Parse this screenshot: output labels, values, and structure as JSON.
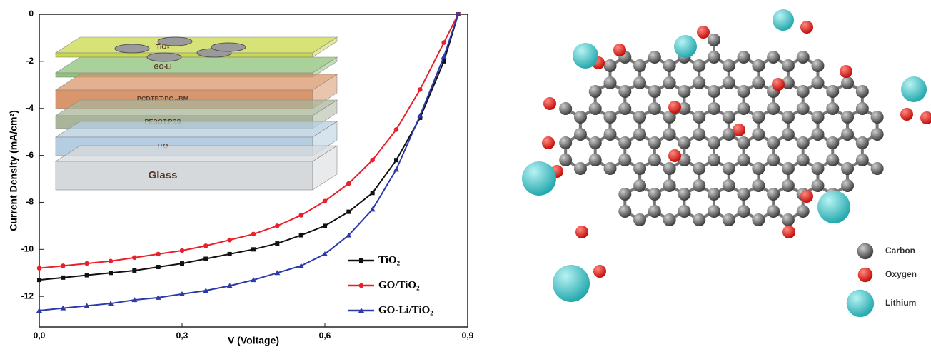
{
  "chart_data": {
    "type": "line",
    "xlabel": "V (Voltage)",
    "ylabel": "Current Density (mA/cm²)",
    "x": [
      0,
      0.05,
      0.1,
      0.15,
      0.2,
      0.25,
      0.3,
      0.35,
      0.4,
      0.45,
      0.5,
      0.55,
      0.6,
      0.65,
      0.7,
      0.75,
      0.8,
      0.85,
      0.88
    ],
    "series": [
      {
        "name": "TiO₂",
        "color": "#111111",
        "marker": "square",
        "values": [
          -11.3,
          -11.2,
          -11.1,
          -11.0,
          -10.9,
          -10.75,
          -10.6,
          -10.4,
          -10.2,
          -10.0,
          -9.75,
          -9.4,
          -9.0,
          -8.4,
          -7.6,
          -6.2,
          -4.4,
          -2.0,
          0
        ]
      },
      {
        "name": "GO/TiO₂",
        "color": "#e8202a",
        "marker": "circle",
        "values": [
          -10.8,
          -10.7,
          -10.6,
          -10.5,
          -10.35,
          -10.2,
          -10.05,
          -9.85,
          -9.6,
          -9.35,
          -9.0,
          -8.55,
          -7.95,
          -7.2,
          -6.2,
          -4.9,
          -3.2,
          -1.2,
          0
        ]
      },
      {
        "name": "GO-Li/TiO₂",
        "color": "#2b3aa8",
        "marker": "triangle",
        "values": [
          -12.6,
          -12.5,
          -12.4,
          -12.3,
          -12.15,
          -12.05,
          -11.9,
          -11.75,
          -11.55,
          -11.3,
          -11.0,
          -10.7,
          -10.2,
          -9.4,
          -8.3,
          -6.6,
          -4.3,
          -1.8,
          0
        ]
      }
    ],
    "xlim": [
      0,
      0.9
    ],
    "xticks": [
      {
        "value": 0,
        "label": "0,0"
      },
      {
        "value": 0.3,
        "label": "0,3"
      },
      {
        "value": 0.6,
        "label": "0,6"
      },
      {
        "value": 0.9,
        "label": "0,9"
      }
    ],
    "ylim": [
      -13.3,
      0
    ],
    "yticks": [
      0,
      -2,
      -4,
      -6,
      -8,
      -10,
      -12
    ],
    "legend": "lower-right",
    "inset": {
      "layers": [
        {
          "label": "TiO₂",
          "color": "#c9d94a"
        },
        {
          "label": "GO-Li",
          "color": "#8fc27a"
        },
        {
          "label": "PCDTBT:PC₇₁BM",
          "color": "#d9956b"
        },
        {
          "label": "PEDOT:PSS",
          "color": "#a9b59a"
        },
        {
          "label": "ITO",
          "color": "#b5cde0"
        },
        {
          "label": "Glass",
          "color": "#d6d9dc"
        }
      ]
    }
  },
  "diagram": {
    "legend": [
      {
        "label": "Carbon",
        "color": "#5a5a5a"
      },
      {
        "label": "Oxygen",
        "color": "#e0201c"
      },
      {
        "label": "Lithium",
        "color": "#3cc3c8"
      }
    ]
  }
}
